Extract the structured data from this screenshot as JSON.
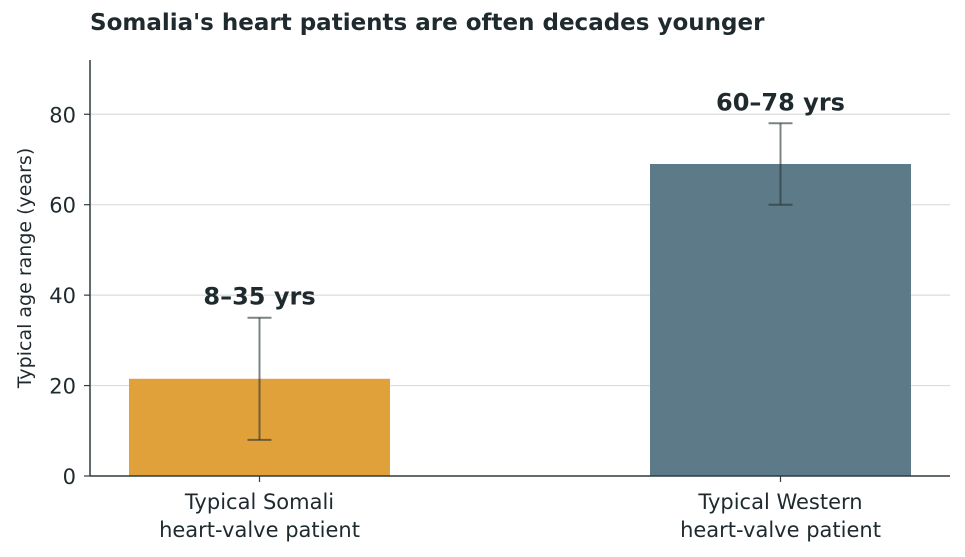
{
  "chart_data": {
    "type": "bar",
    "title": "Somalia's heart patients are often decades younger",
    "xlabel": "",
    "ylabel": "Typical age range (years)",
    "ylim": [
      0,
      92
    ],
    "yticks": [
      0,
      20,
      40,
      60,
      80
    ],
    "grid": true,
    "categories": [
      [
        "Typical Somali",
        "heart-valve patient"
      ],
      [
        "Typical Western",
        "heart-valve patient"
      ]
    ],
    "values": [
      21.5,
      69
    ],
    "ranges": [
      [
        8,
        35
      ],
      [
        60,
        78
      ]
    ],
    "data_labels": [
      "8–35 yrs",
      "60–78 yrs"
    ],
    "colors": [
      "#e0a13a",
      "#5c7a87"
    ]
  }
}
